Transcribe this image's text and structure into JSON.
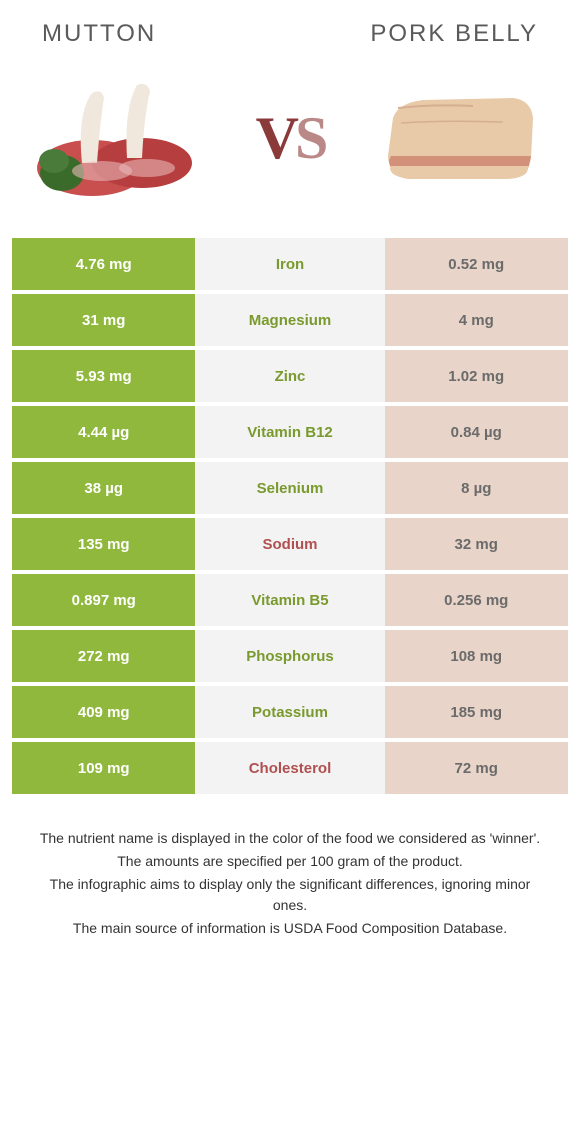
{
  "header": {
    "left_title": "Mutton",
    "right_title": "Pork belly",
    "vs_label": "VS"
  },
  "colors": {
    "left_strong": "#8fb83d",
    "left_soft": "#c5d98b",
    "right_strong": "#d4a5a5",
    "mid_bg": "#f3f3f3",
    "nutrient_left_winner": "#7a9a2e",
    "nutrient_right_winner": "#b05050"
  },
  "rows": [
    {
      "left": "4.76 mg",
      "nutrient": "Iron",
      "right": "0.52 mg",
      "winner": "left",
      "left_bg": "#8fb83d",
      "right_bg": "#e8d4c8",
      "nutrient_color": "#7a9a2e"
    },
    {
      "left": "31 mg",
      "nutrient": "Magnesium",
      "right": "4 mg",
      "winner": "left",
      "left_bg": "#8fb83d",
      "right_bg": "#e8d4c8",
      "nutrient_color": "#7a9a2e"
    },
    {
      "left": "5.93 mg",
      "nutrient": "Zinc",
      "right": "1.02 mg",
      "winner": "left",
      "left_bg": "#8fb83d",
      "right_bg": "#e8d4c8",
      "nutrient_color": "#7a9a2e"
    },
    {
      "left": "4.44 µg",
      "nutrient": "Vitamin B12",
      "right": "0.84 µg",
      "winner": "left",
      "left_bg": "#8fb83d",
      "right_bg": "#e8d4c8",
      "nutrient_color": "#7a9a2e"
    },
    {
      "left": "38 µg",
      "nutrient": "Selenium",
      "right": "8 µg",
      "winner": "left",
      "left_bg": "#8fb83d",
      "right_bg": "#e8d4c8",
      "nutrient_color": "#7a9a2e"
    },
    {
      "left": "135 mg",
      "nutrient": "Sodium",
      "right": "32 mg",
      "winner": "right",
      "left_bg": "#8fb83d",
      "right_bg": "#e8d4c8",
      "nutrient_color": "#b05050"
    },
    {
      "left": "0.897 mg",
      "nutrient": "Vitamin B5",
      "right": "0.256 mg",
      "winner": "left",
      "left_bg": "#8fb83d",
      "right_bg": "#e8d4c8",
      "nutrient_color": "#7a9a2e"
    },
    {
      "left": "272 mg",
      "nutrient": "Phosphorus",
      "right": "108 mg",
      "winner": "left",
      "left_bg": "#8fb83d",
      "right_bg": "#e8d4c8",
      "nutrient_color": "#7a9a2e"
    },
    {
      "left": "409 mg",
      "nutrient": "Potassium",
      "right": "185 mg",
      "winner": "left",
      "left_bg": "#8fb83d",
      "right_bg": "#e8d4c8",
      "nutrient_color": "#7a9a2e"
    },
    {
      "left": "109 mg",
      "nutrient": "Cholesterol",
      "right": "72 mg",
      "winner": "right",
      "left_bg": "#8fb83d",
      "right_bg": "#e8d4c8",
      "nutrient_color": "#b05050"
    }
  ],
  "footer": {
    "line1": "The nutrient name is displayed in the color of the food we considered as 'winner'.",
    "line2": "The amounts are specified per 100 gram of the product.",
    "line3": "The infographic aims to display only the significant differences, ignoring minor ones.",
    "line4": "The main source of information is USDA Food Composition Database."
  },
  "images": {
    "left_alt": "mutton",
    "right_alt": "pork-belly"
  }
}
